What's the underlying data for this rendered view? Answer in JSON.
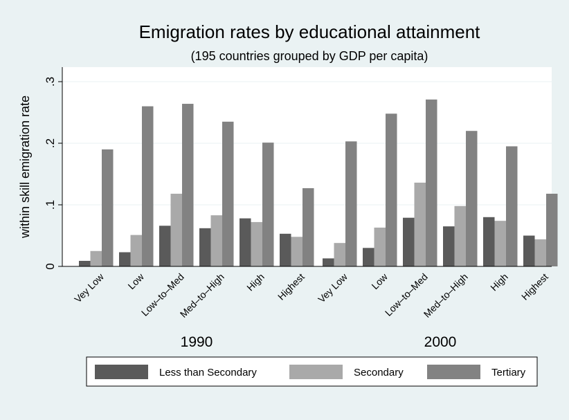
{
  "chart_data": {
    "type": "bar",
    "title": "Emigration rates by educational attainment",
    "subtitle": "(195 countries grouped by GDP per capita)",
    "ylabel": "within skill emigration rate",
    "xlabel": "",
    "ylim": [
      0,
      0.3
    ],
    "yticks": [
      {
        "value": 0,
        "label": "0"
      },
      {
        "value": 0.1,
        "label": ".1"
      },
      {
        "value": 0.2,
        "label": ".2"
      },
      {
        "value": 0.3,
        "label": ".3"
      }
    ],
    "grid": true,
    "legend_position": "bottom",
    "categories": [
      "Vey Low",
      "Low",
      "Low–to–Med",
      "Med–to–High",
      "High",
      "Highest"
    ],
    "groups": [
      {
        "label": "1990",
        "series": [
          {
            "name": "Less than Secondary",
            "values": [
              0.009,
              0.023,
              0.066,
              0.062,
              0.078,
              0.053
            ]
          },
          {
            "name": "Secondary",
            "values": [
              0.025,
              0.051,
              0.118,
              0.083,
              0.072,
              0.048
            ]
          },
          {
            "name": "Tertiary",
            "values": [
              0.19,
              0.26,
              0.264,
              0.235,
              0.201,
              0.127
            ]
          }
        ]
      },
      {
        "label": "2000",
        "series": [
          {
            "name": "Less than Secondary",
            "values": [
              0.013,
              0.03,
              0.079,
              0.065,
              0.08,
              0.05
            ]
          },
          {
            "name": "Secondary",
            "values": [
              0.038,
              0.063,
              0.136,
              0.098,
              0.074,
              0.044
            ]
          },
          {
            "name": "Tertiary",
            "values": [
              0.203,
              0.248,
              0.271,
              0.22,
              0.195,
              0.118
            ]
          }
        ]
      }
    ],
    "colors": {
      "Less than Secondary": "#5a5a5a",
      "Secondary": "#a9a9a9",
      "Tertiary": "#828282",
      "background": "#eaf2f3",
      "plot_background": "#ffffff",
      "grid": "#eaf2f3"
    }
  }
}
